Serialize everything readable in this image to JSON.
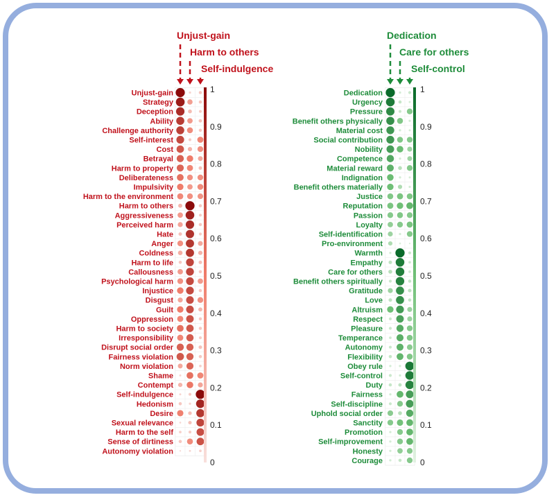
{
  "chart_data": [
    {
      "type": "heatmap",
      "panel": "negative",
      "columns": [
        "Unjust-gain",
        "Harm to others",
        "Self-indulgence"
      ],
      "rows": [
        "Unjust-gain",
        "Strategy",
        "Deception",
        "Ability",
        "Challenge authority",
        "Self-interest",
        "Cost",
        "Betrayal",
        "Harm to property",
        "Deliberateness",
        "Impulsivity",
        "Harm to the environment",
        "Harm to others",
        "Aggressiveness",
        "Perceived harm",
        "Hate",
        "Anger",
        "Coldness",
        "Harm to life",
        "Callousness",
        "Psychological harm",
        "Injustice",
        "Disgust",
        "Guilt",
        "Oppression",
        "Harm to society",
        "Irresponsibility",
        "Disrupt social order",
        "Fairness violation",
        "Norm violation",
        "Shame",
        "Contempt",
        "Self-indulgence",
        "Hedonism",
        "Desire",
        "Sexual relevance",
        "Harm to the self",
        "Sense of dirtiness",
        "Autonomy violation"
      ],
      "values": [
        [
          1.0,
          0.06,
          0.12
        ],
        [
          0.92,
          0.33,
          0.12
        ],
        [
          0.85,
          0.18,
          0.1
        ],
        [
          0.78,
          0.35,
          0.14
        ],
        [
          0.76,
          0.42,
          0.12
        ],
        [
          0.72,
          0.1,
          0.45
        ],
        [
          0.66,
          0.22,
          0.4
        ],
        [
          0.62,
          0.5,
          0.28
        ],
        [
          0.6,
          0.45,
          0.15
        ],
        [
          0.55,
          0.4,
          0.4
        ],
        [
          0.5,
          0.35,
          0.42
        ],
        [
          0.44,
          0.4,
          0.38
        ],
        [
          0.2,
          1.0,
          0.12
        ],
        [
          0.35,
          0.9,
          0.1
        ],
        [
          0.3,
          0.85,
          0.12
        ],
        [
          0.15,
          0.82,
          0.1
        ],
        [
          0.4,
          0.8,
          0.28
        ],
        [
          0.25,
          0.8,
          0.22
        ],
        [
          0.12,
          0.74,
          0.15
        ],
        [
          0.35,
          0.74,
          0.12
        ],
        [
          0.4,
          0.72,
          0.35
        ],
        [
          0.5,
          0.72,
          0.12
        ],
        [
          0.3,
          0.7,
          0.4
        ],
        [
          0.5,
          0.7,
          0.2
        ],
        [
          0.45,
          0.68,
          0.12
        ],
        [
          0.55,
          0.66,
          0.12
        ],
        [
          0.45,
          0.64,
          0.1
        ],
        [
          0.62,
          0.62,
          0.15
        ],
        [
          0.66,
          0.62,
          0.12
        ],
        [
          0.28,
          0.6,
          0.08
        ],
        [
          0.05,
          0.55,
          0.45
        ],
        [
          0.22,
          0.52,
          0.3
        ],
        [
          0.05,
          0.1,
          1.0
        ],
        [
          0.12,
          0.06,
          0.88
        ],
        [
          0.48,
          0.16,
          0.8
        ],
        [
          0.04,
          0.15,
          0.74
        ],
        [
          0.08,
          0.1,
          0.7
        ],
        [
          0.12,
          0.42,
          0.68
        ],
        [
          0.03,
          0.05,
          0.08
        ]
      ],
      "color_scale": {
        "low": "#f8e0dc",
        "mid": "#ef7c6a",
        "high": "#8b0a0a",
        "range": [
          0,
          1
        ]
      },
      "colorbar_ticks": [
        "1",
        "0.9",
        "0.8",
        "0.7",
        "0.6",
        "0.5",
        "0.4",
        "0.3",
        "0.2",
        "0.1",
        "0"
      ]
    },
    {
      "type": "heatmap",
      "panel": "positive",
      "columns": [
        "Dedication",
        "Care for others",
        "Self-control"
      ],
      "rows": [
        "Dedication",
        "Urgency",
        "Pressure",
        "Benefit others physically",
        "Material cost",
        "Social contribution",
        "Nobility",
        "Competence",
        "Material reward",
        "Indignation",
        "Benefit others materially",
        "Justice",
        "Reputation",
        "Passion",
        "Loyalty",
        "Self-identification",
        "Pro-environment",
        "Warmth",
        "Empathy",
        "Care for others",
        "Benefit others spiritually",
        "Gratitude",
        "Love",
        "Altruism",
        "Respect",
        "Pleasure",
        "Temperance",
        "Autonomy",
        "Flexibility",
        "Obey rule",
        "Self-control",
        "Duty",
        "Fairness",
        "Self-discipline",
        "Uphold social order",
        "Sanctity",
        "Promotion",
        "Self-improvement",
        "Honesty",
        "Courage"
      ],
      "values": [
        [
          1.0,
          0.06,
          0.1
        ],
        [
          0.9,
          0.12,
          0.05
        ],
        [
          0.82,
          0.1,
          0.4
        ],
        [
          0.78,
          0.42,
          0.06
        ],
        [
          0.74,
          0.06,
          0.05
        ],
        [
          0.74,
          0.42,
          0.4
        ],
        [
          0.7,
          0.52,
          0.3
        ],
        [
          0.64,
          0.06,
          0.28
        ],
        [
          0.58,
          0.18,
          0.4
        ],
        [
          0.52,
          0.06,
          0.05
        ],
        [
          0.5,
          0.22,
          0.06
        ],
        [
          0.42,
          0.45,
          0.42
        ],
        [
          0.45,
          0.5,
          0.55
        ],
        [
          0.4,
          0.42,
          0.4
        ],
        [
          0.35,
          0.4,
          0.45
        ],
        [
          0.3,
          0.06,
          0.4
        ],
        [
          0.22,
          0.04,
          0.03
        ],
        [
          0.06,
          1.0,
          0.1
        ],
        [
          0.15,
          0.9,
          0.08
        ],
        [
          0.18,
          0.88,
          0.08
        ],
        [
          0.1,
          0.86,
          0.12
        ],
        [
          0.3,
          0.78,
          0.15
        ],
        [
          0.15,
          0.78,
          0.12
        ],
        [
          0.5,
          0.72,
          0.3
        ],
        [
          0.1,
          0.68,
          0.3
        ],
        [
          0.1,
          0.62,
          0.4
        ],
        [
          0.08,
          0.6,
          0.42
        ],
        [
          0.1,
          0.58,
          0.38
        ],
        [
          0.12,
          0.56,
          0.42
        ],
        [
          0.06,
          0.06,
          0.92
        ],
        [
          0.1,
          0.06,
          0.9
        ],
        [
          0.12,
          0.14,
          0.86
        ],
        [
          0.06,
          0.55,
          0.7
        ],
        [
          0.1,
          0.4,
          0.7
        ],
        [
          0.38,
          0.18,
          0.62
        ],
        [
          0.4,
          0.48,
          0.55
        ],
        [
          0.06,
          0.4,
          0.55
        ],
        [
          0.06,
          0.4,
          0.55
        ],
        [
          0.06,
          0.35,
          0.4
        ],
        [
          0.06,
          0.12,
          0.4
        ]
      ],
      "color_scale": {
        "low": "#e2f2e2",
        "mid": "#6fbf76",
        "high": "#0a6a2a",
        "range": [
          0,
          1
        ]
      },
      "colorbar_ticks": [
        "1",
        "0.9",
        "0.8",
        "0.7",
        "0.6",
        "0.5",
        "0.4",
        "0.3",
        "0.2",
        "0.1",
        "0"
      ]
    }
  ],
  "colors": {
    "negative": "#c0121c",
    "positive": "#1e8c3a",
    "frame": "#95aede"
  }
}
